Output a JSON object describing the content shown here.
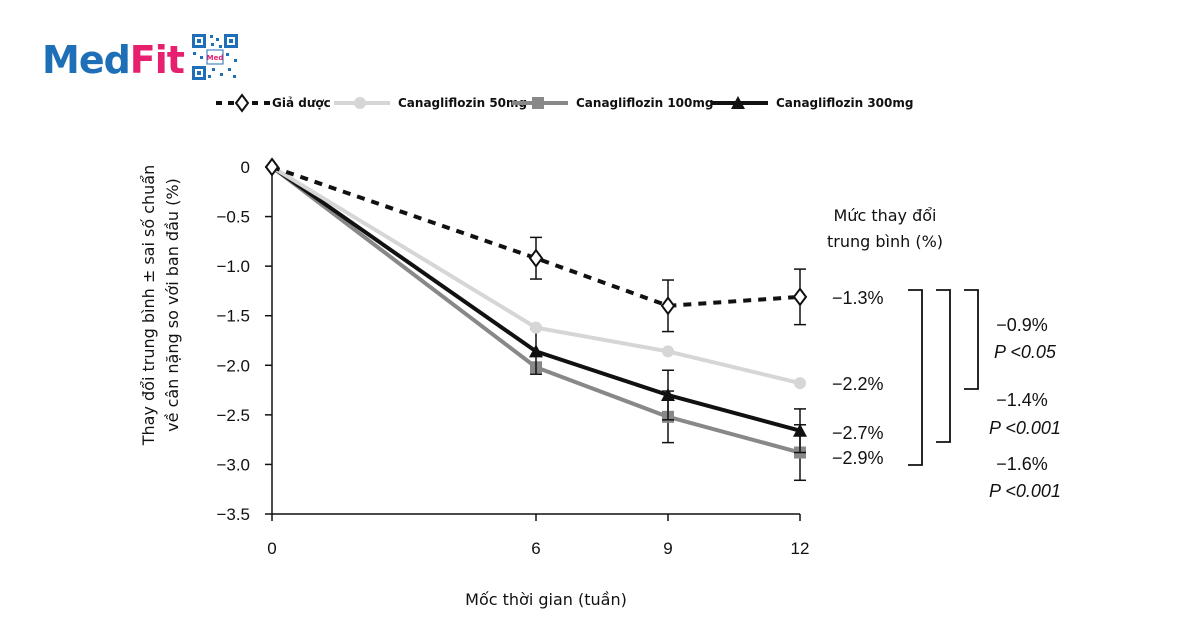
{
  "brand": {
    "logo_part1": "Med",
    "logo_part2": "Fit",
    "qr_text": "Med"
  },
  "colors": {
    "placebo": "#111111",
    "cana50": "#d6d6d6",
    "cana100": "#888888",
    "cana300": "#111111",
    "brand_blue": "#1f6fb8",
    "brand_pink": "#e6206f"
  },
  "chart_data": {
    "type": "line",
    "xlabel": "Mốc thời gian (tuần)",
    "ylabel_line1": "Thay đổi trung bình ± sai số chuẩn",
    "ylabel_line2": "về cân nặng so với ban đầu (%)",
    "x": [
      0,
      6,
      9,
      12
    ],
    "xlim": [
      0,
      12
    ],
    "ylim": [
      -3.5,
      0
    ],
    "x_ticks": [
      "0",
      "6",
      "9",
      "12"
    ],
    "y_ticks": [
      "0",
      "−0.5",
      "−1.0",
      "−1.5",
      "−2.0",
      "−2.5",
      "−3.0",
      "−3.5"
    ],
    "y_tick_values": [
      0,
      -0.5,
      -1.0,
      -1.5,
      -2.0,
      -2.5,
      -3.0,
      -3.5
    ],
    "grid": false,
    "legend_position": "top",
    "series": [
      {
        "name": "Giả dược",
        "key": "placebo",
        "marker": "diamond-open",
        "dash": true,
        "values": [
          0,
          -0.92,
          -1.4,
          -1.31
        ],
        "errors": [
          0,
          0.21,
          0.26,
          0.28
        ]
      },
      {
        "name": "Canagliflozin 50mg",
        "key": "cana50",
        "marker": "circle",
        "dash": false,
        "values": [
          0,
          -1.62,
          -1.86,
          -2.18
        ],
        "errors": [
          0,
          0,
          0,
          0
        ]
      },
      {
        "name": "Canagliflozin 100mg",
        "key": "cana100",
        "marker": "square",
        "dash": false,
        "values": [
          0,
          -2.02,
          -2.52,
          -2.88
        ],
        "errors": [
          0,
          0,
          0.26,
          0.28
        ]
      },
      {
        "name": "Canagliflozin 300mg",
        "key": "cana300",
        "marker": "triangle",
        "dash": false,
        "values": [
          0,
          -1.86,
          -2.3,
          -2.66
        ],
        "errors": [
          0,
          0.23,
          0.25,
          0.22
        ]
      }
    ],
    "annotations": {
      "side_title_line1": "Mức thay đổi",
      "side_title_line2": "trung bình (%)",
      "end_labels": [
        "−1.3%",
        "−2.2%",
        "−2.7%",
        "−2.9%"
      ],
      "comparisons": [
        {
          "diff": "−0.9%",
          "p": "P <0.05"
        },
        {
          "diff": "−1.4%",
          "p": "P <0.001"
        },
        {
          "diff": "−1.6%",
          "p": "P <0.001"
        }
      ]
    }
  }
}
